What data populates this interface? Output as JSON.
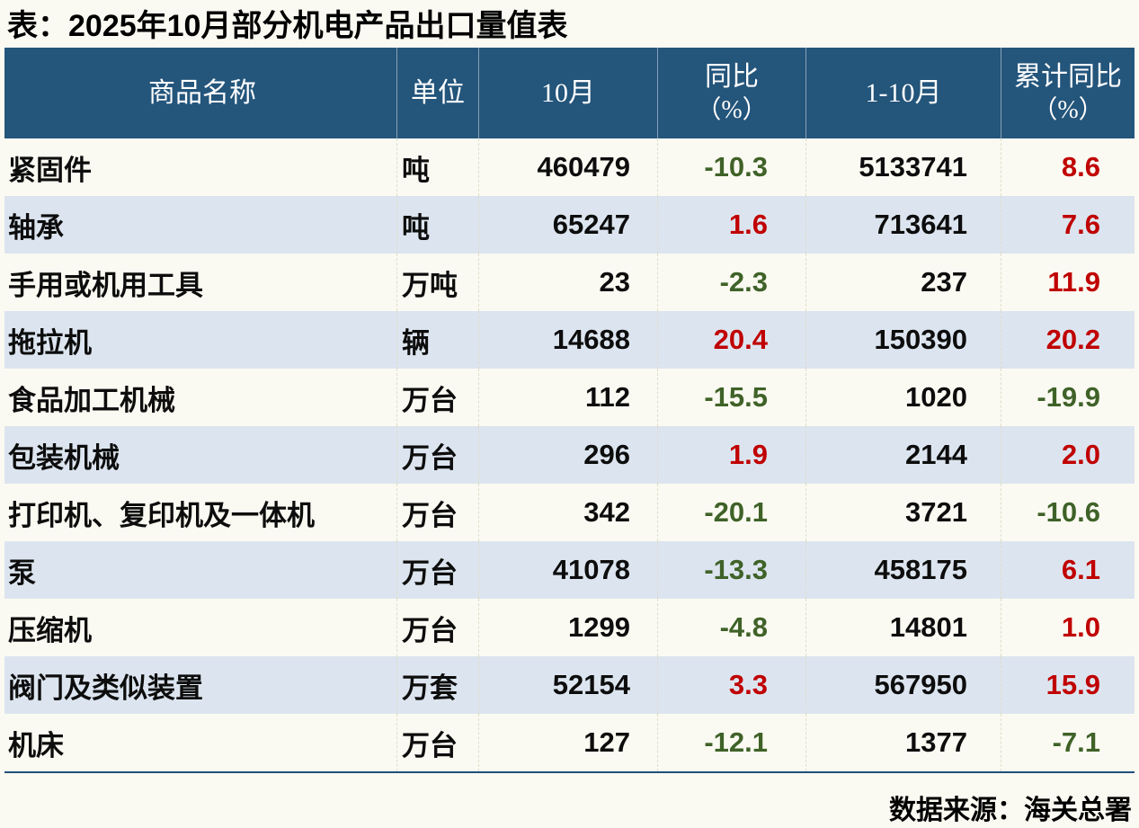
{
  "title": "表：2025年10月部分机电产品出口量值表",
  "header": {
    "product": "商品名称",
    "unit": "单位",
    "month": "10月",
    "yoy": [
      "同比",
      "（%）"
    ],
    "range": "1-10月",
    "cum_yoy": [
      "累计同比",
      "（%）"
    ]
  },
  "chart_data": {
    "type": "table",
    "title": "表：2025年10月部分机电产品出口量值表",
    "columns": [
      "商品名称",
      "单位",
      "10月",
      "同比（%）",
      "1-10月",
      "累计同比（%）"
    ],
    "rows": [
      [
        "紧固件",
        "吨",
        "460479",
        "-10.3",
        "5133741",
        "8.6"
      ],
      [
        "轴承",
        "吨",
        "65247",
        "1.6",
        "713641",
        "7.6"
      ],
      [
        "手用或机用工具",
        "万吨",
        "23",
        "-2.3",
        "237",
        "11.9"
      ],
      [
        "拖拉机",
        "辆",
        "14688",
        "20.4",
        "150390",
        "20.2"
      ],
      [
        "食品加工机械",
        "万台",
        "112",
        "-15.5",
        "1020",
        "-19.9"
      ],
      [
        "包装机械",
        "万台",
        "296",
        "1.9",
        "2144",
        "2.0"
      ],
      [
        "打印机、复印机及一体机",
        "万台",
        "342",
        "-20.1",
        "3721",
        "-10.6"
      ],
      [
        "泵",
        "万台",
        "41078",
        "-13.3",
        "458175",
        "6.1"
      ],
      [
        "压缩机",
        "万台",
        "1299",
        "-4.8",
        "14801",
        "1.0"
      ],
      [
        "阀门及类似装置",
        "万套",
        "52154",
        "3.3",
        "567950",
        "15.9"
      ],
      [
        "机床",
        "万台",
        "127",
        "-12.1",
        "1377",
        "-7.1"
      ]
    ],
    "source": "数据来源：海关总署"
  },
  "footer": {
    "source": "数据来源：海关总署"
  },
  "colors": {
    "header_bg": "#24557B",
    "header_text": "#FFFFFF",
    "row_alt": "#DCE5EF",
    "positive": "#C00000",
    "negative": "#3F6228",
    "table_border": "#1F4E79",
    "page_bg": "#FBFAF2"
  }
}
